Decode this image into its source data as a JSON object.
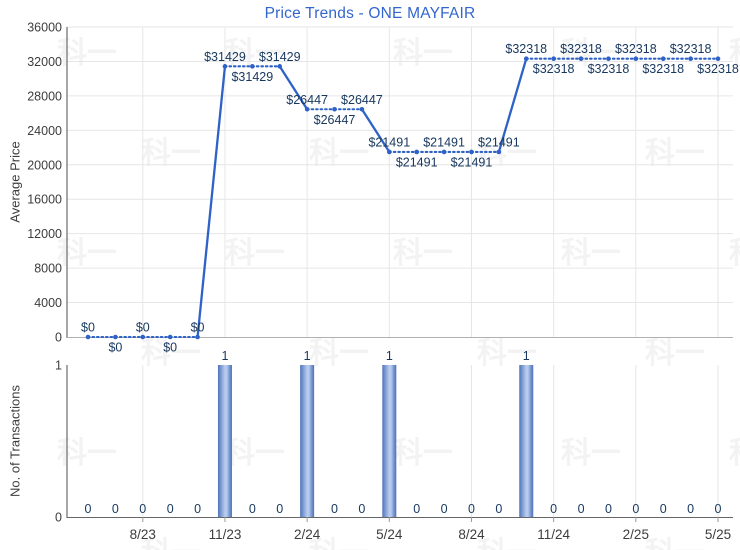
{
  "colors": {
    "title": "#3366cc",
    "line": "#2e62c6",
    "data_label": "#17375e",
    "tick_text": "#3d3d3d",
    "axis_dark": "#4d4d4d",
    "axis_light": "#b0b0b0",
    "axis_bottom": "#666666",
    "tick_mark": "#999999",
    "grid": "#e6e6e6",
    "bar_dark": "#4e73b4",
    "bar_mid": "#6e8fcb",
    "bar_light": "#b8cbee",
    "watermark": "#aaaaaa"
  },
  "watermark": {
    "text": "科一"
  },
  "chart_data": [
    {
      "type": "line",
      "title": "Price Trends - ONE MAYFAIR",
      "ylabel": "Average Price",
      "xlabel": "",
      "ylim": [
        0,
        36000
      ],
      "grid": true,
      "ytick_labels": [
        "0",
        "4000",
        "8000",
        "12000",
        "16000",
        "20000",
        "24000",
        "28000",
        "32000",
        "36000"
      ],
      "ytick_values": [
        0,
        4000,
        8000,
        12000,
        16000,
        20000,
        24000,
        28000,
        32000,
        36000
      ],
      "months": [
        "6/23",
        "7/23",
        "8/23",
        "9/23",
        "10/23",
        "11/23",
        "12/23",
        "1/24",
        "2/24",
        "3/24",
        "4/24",
        "5/24",
        "6/24",
        "7/24",
        "8/24",
        "9/24",
        "10/24",
        "11/24",
        "12/24",
        "1/25",
        "2/25",
        "3/25",
        "4/25",
        "5/25"
      ],
      "x_tick_labels": [
        "8/23",
        "11/23",
        "2/24",
        "5/24",
        "8/24",
        "11/24",
        "2/25",
        "5/25"
      ],
      "values": [
        0,
        0,
        0,
        0,
        0,
        31429,
        31429,
        31429,
        26447,
        26447,
        26447,
        21491,
        21491,
        21491,
        21491,
        21491,
        32318,
        32318,
        32318,
        32318,
        32318,
        32318,
        32318,
        32318
      ],
      "point_labels": [
        "$0",
        "$0",
        "$0",
        "$0",
        "$0",
        "$31429",
        "$31429",
        "$31429",
        "$26447",
        "$26447",
        "$26447",
        "$21491",
        "$21491",
        "$21491",
        "$21491",
        "$21491",
        "$32318",
        "$32318",
        "$32318",
        "$32318",
        "$32318",
        "$32318",
        "$32318",
        "$32318"
      ]
    },
    {
      "type": "bar",
      "ylabel": "No. of Transactions",
      "xlabel": "",
      "ylim": [
        0,
        1
      ],
      "grid": true,
      "ytick_labels": [
        "0",
        "1"
      ],
      "ytick_values": [
        0,
        1
      ],
      "categories": [
        "6/23",
        "7/23",
        "8/23",
        "9/23",
        "10/23",
        "11/23",
        "12/23",
        "1/24",
        "2/24",
        "3/24",
        "4/24",
        "5/24",
        "6/24",
        "7/24",
        "8/24",
        "9/24",
        "10/24",
        "11/24",
        "12/24",
        "1/25",
        "2/25",
        "3/25",
        "4/25",
        "5/25"
      ],
      "x_tick_labels": [
        "8/23",
        "11/23",
        "2/24",
        "5/24",
        "8/24",
        "11/24",
        "2/25",
        "5/25"
      ],
      "values": [
        0,
        0,
        0,
        0,
        0,
        1,
        0,
        0,
        1,
        0,
        0,
        1,
        0,
        0,
        0,
        0,
        1,
        0,
        0,
        0,
        0,
        0,
        0,
        0
      ],
      "value_labels": [
        "0",
        "0",
        "0",
        "0",
        "0",
        "1",
        "0",
        "0",
        "1",
        "0",
        "0",
        "1",
        "0",
        "0",
        "0",
        "0",
        "1",
        "0",
        "0",
        "0",
        "0",
        "0",
        "0",
        "0"
      ]
    }
  ]
}
